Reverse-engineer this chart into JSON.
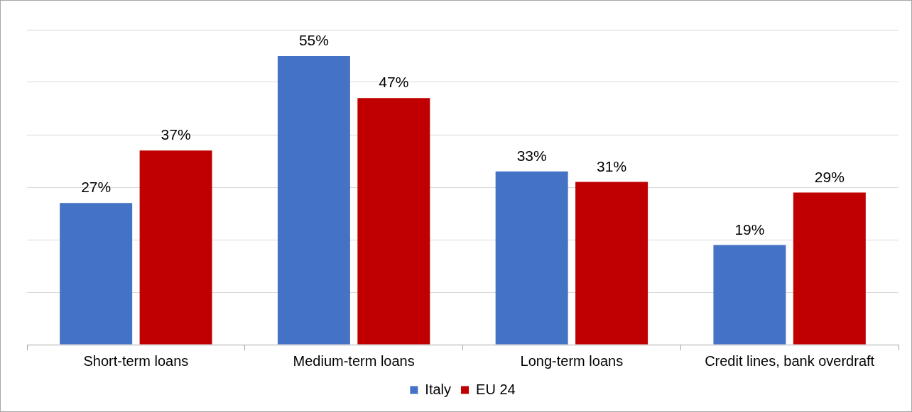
{
  "chart_data": {
    "type": "bar",
    "categories": [
      "Short-term loans",
      "Medium-term loans",
      "Long-term loans",
      "Credit lines, bank overdraft"
    ],
    "series": [
      {
        "name": "Italy",
        "color": "#4472c4",
        "values": [
          27,
          55,
          33,
          19
        ],
        "value_labels": [
          "27%",
          "55%",
          "33%",
          "19%"
        ]
      },
      {
        "name": "EU 24",
        "color": "#c00000",
        "values": [
          37,
          47,
          31,
          29
        ],
        "value_labels": [
          "37%",
          "47%",
          "31%",
          "29%"
        ]
      }
    ],
    "ylim": [
      0,
      60
    ],
    "yticks": [
      {
        "value": 0,
        "label": null
      },
      {
        "value": 10,
        "label": null
      },
      {
        "value": 20,
        "label": null
      },
      {
        "value": 30,
        "label": null
      },
      {
        "value": 40,
        "label": null
      },
      {
        "value": 50,
        "label": null
      },
      {
        "value": 60,
        "label": null
      }
    ],
    "tick_labels": "x",
    "grid": "y",
    "legend": "bottom"
  }
}
